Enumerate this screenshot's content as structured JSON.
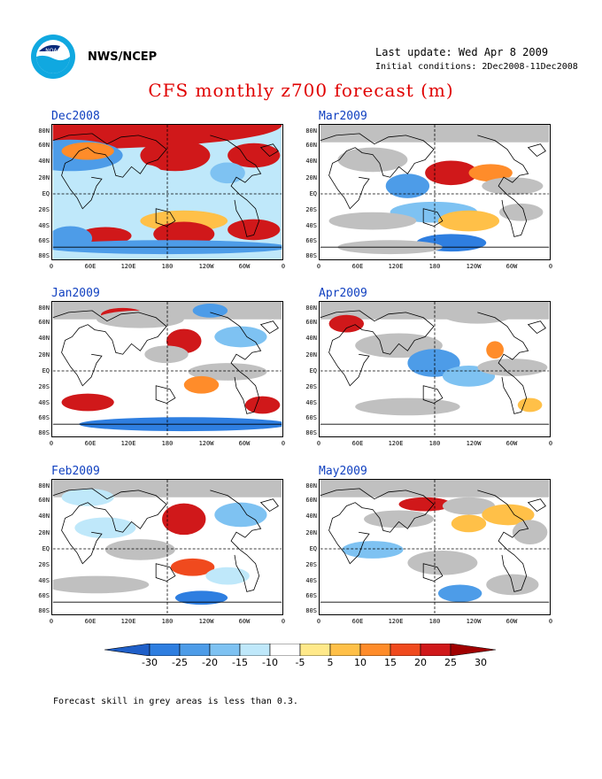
{
  "header": {
    "agency": "NWS/NCEP",
    "last_update": "Last update: Wed Apr 8 2009",
    "initial_conditions": "Initial conditions: 2Dec2008-11Dec2008",
    "title": "CFS monthly z700 forecast (m)"
  },
  "lat_labels": [
    "80N",
    "60N",
    "40N",
    "20N",
    "EQ",
    "20S",
    "40S",
    "60S",
    "80S"
  ],
  "lon_labels": [
    "0",
    "60E",
    "120E",
    "180",
    "120W",
    "60W",
    "0"
  ],
  "panels": [
    {
      "month": "Dec2008"
    },
    {
      "month": "Mar2009"
    },
    {
      "month": "Jan2009"
    },
    {
      "month": "Apr2009"
    },
    {
      "month": "Feb2009"
    },
    {
      "month": "May2009"
    }
  ],
  "colorbar": {
    "labels": [
      "-30",
      "-25",
      "-20",
      "-15",
      "-10",
      "-5",
      "5",
      "10",
      "15",
      "20",
      "25",
      "30"
    ],
    "colors": [
      "#1f5fc8",
      "#2e7ee0",
      "#4d9ce8",
      "#7ec2f2",
      "#bfe8fa",
      "#ffffff",
      "#ffe98a",
      "#ffc048",
      "#ff8c2a",
      "#f04a1e",
      "#d0181a",
      "#a00000"
    ]
  },
  "footer": "Forecast skill in grey areas is less than 0.3."
}
